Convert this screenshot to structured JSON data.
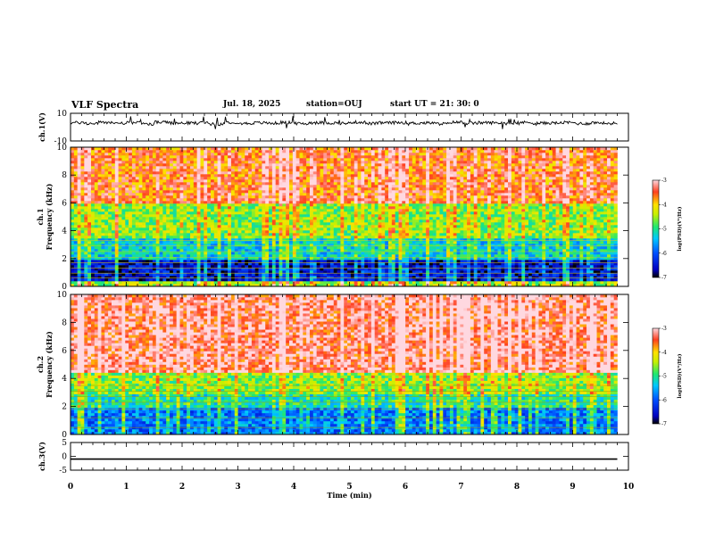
{
  "header": {
    "title": "VLF Spectra",
    "date": "Jul. 18, 2025",
    "station": "station=OUJ",
    "start": "start UT = 21: 30: 0"
  },
  "chart_data": [
    {
      "type": "line",
      "panel": "ch1-waveform",
      "ylabel": "ch.1(V)",
      "ylim": [
        -10,
        10
      ],
      "yticks": [
        "10",
        "-10"
      ],
      "xlim": [
        0,
        10
      ],
      "series": [
        {
          "values_note_level": 3,
          "values": [
            3.2,
            2.6,
            3.4,
            2.9,
            3.1,
            2.4,
            3.6,
            2.8,
            3.0,
            3.3,
            2.2,
            3.5,
            2.7,
            3.1,
            2.9,
            3.4,
            2.5,
            3.2,
            3.0,
            2.8,
            3.6,
            2.6,
            3.1,
            3.3,
            2.9,
            3.0,
            2.4,
            3.5,
            2.8,
            3.2,
            3.1,
            2.7,
            3.4,
            2.9,
            3.0,
            3.3,
            2.6,
            3.2,
            2.8,
            3.1
          ]
        }
      ]
    },
    {
      "type": "heatmap",
      "panel": "ch1-spectrogram",
      "ylabel": "ch.1 Frequency (kHz)",
      "xlim": [
        0,
        10
      ],
      "ylim": [
        0,
        10
      ],
      "yticks": [
        "0",
        "2",
        "4",
        "6",
        "8",
        "10"
      ],
      "colorbar": {
        "label": "log(PSD)(V²/Hz)",
        "range": [
          -7,
          -3
        ],
        "ticks": [
          "-3",
          "-4",
          "-5",
          "-6",
          "-7"
        ]
      },
      "bands": [
        {
          "from": 0,
          "to": 0.3,
          "level": -4.5
        },
        {
          "from": 0.3,
          "to": 2.0,
          "level": -6.5
        },
        {
          "from": 2.0,
          "to": 3.5,
          "level": -5.3
        },
        {
          "from": 3.5,
          "to": 6.0,
          "level": -4.6
        },
        {
          "from": 6.0,
          "to": 10,
          "level": -3.6
        }
      ]
    },
    {
      "type": "heatmap",
      "panel": "ch2-spectrogram",
      "ylabel": "ch.2 Frequency (kHz)",
      "xlim": [
        0,
        10
      ],
      "ylim": [
        0,
        10
      ],
      "yticks": [
        "0",
        "2",
        "4",
        "6",
        "8",
        "10"
      ],
      "colorbar": {
        "label": "log(PSD)(V²/Hz)",
        "range": [
          -7,
          -3
        ],
        "ticks": [
          "-3",
          "-4",
          "-5",
          "-6",
          "-7"
        ]
      },
      "bands": [
        {
          "from": 0,
          "to": 2.0,
          "level": -5.8
        },
        {
          "from": 2.0,
          "to": 2.8,
          "level": -5.1
        },
        {
          "from": 2.8,
          "to": 4.5,
          "level": -4.6
        },
        {
          "from": 4.5,
          "to": 10,
          "level": -3.3
        }
      ]
    },
    {
      "type": "line",
      "panel": "ch3-waveform",
      "ylabel": "ch.3(V)",
      "ylim": [
        -5,
        5
      ],
      "yticks": [
        "5",
        "0",
        "-5"
      ],
      "xlim": [
        0,
        10
      ],
      "xlabel": "Time (min)",
      "xticks": [
        "0",
        "1",
        "2",
        "3",
        "4",
        "5",
        "6",
        "7",
        "8",
        "9",
        "10"
      ],
      "series": [
        {
          "values": [
            -1,
            -1
          ]
        }
      ]
    }
  ]
}
